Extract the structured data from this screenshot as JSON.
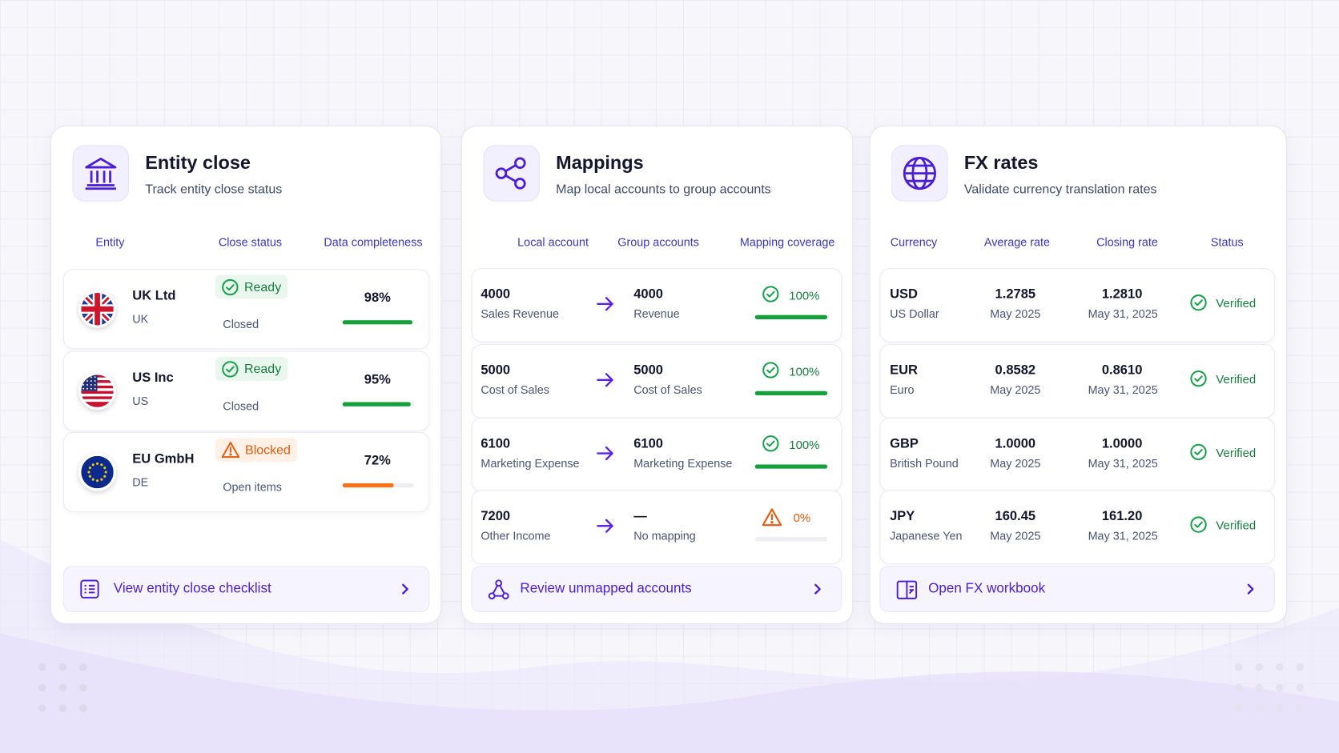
{
  "cards": [
    {
      "title": "Entity close",
      "subtitle": "Track entity close status",
      "columns": [
        "Entity",
        "Close status",
        "Data completeness"
      ],
      "rows": [
        {
          "name": "UK Ltd",
          "code": "UK",
          "status": "Ready",
          "detail": "Closed",
          "completeness": {
            "value": 98,
            "label": "98%"
          }
        },
        {
          "name": "US Inc",
          "code": "US",
          "status": "Ready",
          "detail": "Closed",
          "completeness": {
            "value": 95,
            "label": "95%"
          }
        },
        {
          "name": "EU GmbH",
          "code": "DE",
          "status": "Blocked",
          "detail": "Open items",
          "completeness": {
            "value": 72,
            "label": "72%"
          }
        }
      ],
      "action": "View entity close checklist"
    },
    {
      "title": "Mappings",
      "subtitle": "Map local accounts to group accounts",
      "columns": [
        "Local account",
        "Group accounts",
        "Mapping coverage"
      ],
      "rows": [
        {
          "local": "4000",
          "local_name": "Sales Revenue",
          "group": "4000",
          "group_name": "Revenue",
          "coverage": {
            "value": 100,
            "label": "100%"
          }
        },
        {
          "local": "5000",
          "local_name": "Cost of Sales",
          "group": "5000",
          "group_name": "Cost of Sales",
          "coverage": {
            "value": 100,
            "label": "100%"
          }
        },
        {
          "local": "6100",
          "local_name": "Marketing Expense",
          "group": "6100",
          "group_name": "Marketing Expense",
          "coverage": {
            "value": 100,
            "label": "100%"
          }
        },
        {
          "local": "7200",
          "local_name": "Other Income",
          "group": "—",
          "group_name": "No mapping",
          "coverage": {
            "value": 0,
            "label": "0%"
          }
        }
      ],
      "action": "Review unmapped accounts"
    },
    {
      "title": "FX rates",
      "subtitle": "Validate currency translation rates",
      "columns": [
        "Currency",
        "Average rate",
        "Closing rate",
        "Status"
      ],
      "rows": [
        {
          "currency": "USD",
          "currency_name": "US Dollar",
          "average": "1.2785",
          "average_date": "May 2025",
          "closing": "1.2810",
          "closing_date": "May 31, 2025",
          "status": "Verified"
        },
        {
          "currency": "EUR",
          "currency_name": "Euro",
          "average": "0.8582",
          "average_date": "May 2025",
          "closing": "0.8610",
          "closing_date": "May 31, 2025",
          "status": "Verified"
        },
        {
          "currency": "GBP",
          "currency_name": "British Pound",
          "average": "1.0000",
          "average_date": "May 2025",
          "closing": "1.0000",
          "closing_date": "May 31, 2025",
          "status": "Verified"
        },
        {
          "currency": "JPY",
          "currency_name": "Japanese Yen",
          "average": "160.45",
          "average_date": "May 2025",
          "closing": "161.20",
          "closing_date": "May 31, 2025",
          "status": "Verified"
        }
      ],
      "action": "Open FX workbook"
    }
  ]
}
